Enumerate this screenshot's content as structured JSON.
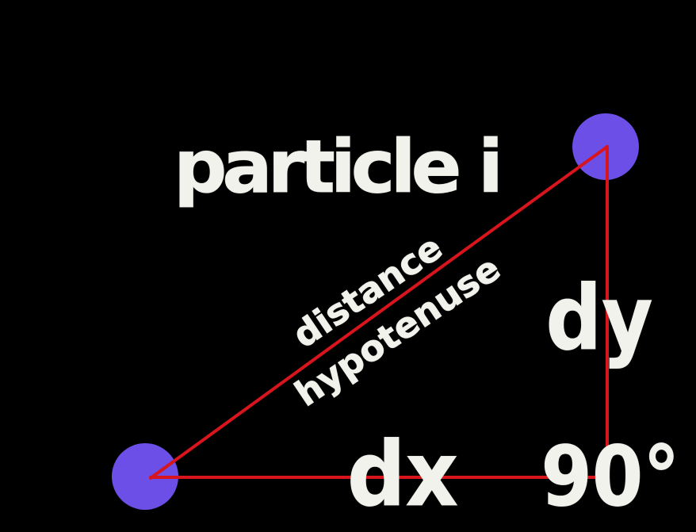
{
  "labels": {
    "particle": "particle i",
    "distance": "distance",
    "hypotenuse": "hypotenuse",
    "dy": "dy",
    "dx": "dx",
    "angle": "90°"
  },
  "colors": {
    "background": "#000000",
    "particle": "#6b4fe6",
    "triangle": "#d8141c",
    "text": "#f2f2ec"
  }
}
